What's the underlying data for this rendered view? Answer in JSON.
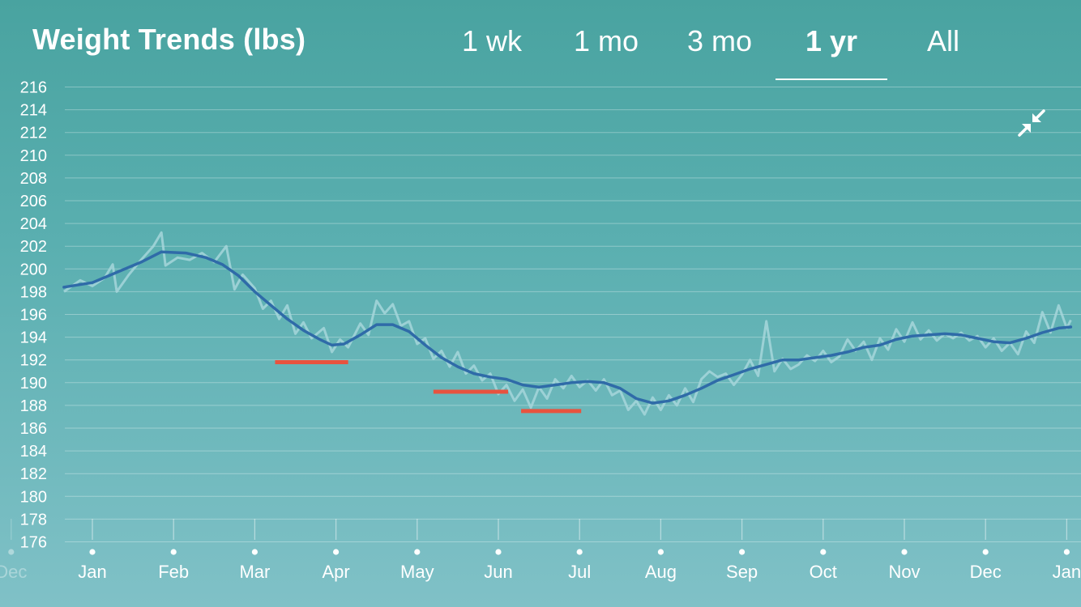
{
  "header": {
    "title": "Weight Trends (lbs)",
    "tabs": [
      {
        "label": "1 wk",
        "active": false
      },
      {
        "label": "1 mo",
        "active": false
      },
      {
        "label": "3 mo",
        "active": false
      },
      {
        "label": "1 yr",
        "active": true
      },
      {
        "label": "All",
        "active": false
      }
    ],
    "collapse_icon": "collapse-arrows-icon"
  },
  "colors": {
    "trend_line": "#2f6ba8",
    "raw_line": "#a6d6da",
    "goal_marker": "#e8533f",
    "grid": "#ffffff"
  },
  "chart_data": {
    "type": "line",
    "title": "Weight Trends (lbs)",
    "ylabel": "",
    "xlabel": "",
    "ylim": [
      176,
      216
    ],
    "y_ticks": [
      176,
      178,
      180,
      182,
      184,
      186,
      188,
      190,
      192,
      194,
      196,
      198,
      200,
      202,
      204,
      206,
      208,
      210,
      212,
      214,
      216
    ],
    "x_tick_labels": [
      "Jan",
      "Feb",
      "Mar",
      "Apr",
      "May",
      "Jun",
      "Jul",
      "Aug",
      "Sep",
      "Oct",
      "Nov",
      "Dec",
      "Jan"
    ],
    "x_edge_label": "Dec",
    "x_unit": "month index (0 = Jan, 12 = next Jan)",
    "xlim": [
      -0.35,
      12.05
    ],
    "grid": true,
    "series": [
      {
        "role": "trend",
        "points": [
          [
            -0.35,
            198.4
          ],
          [
            0.0,
            198.8
          ],
          [
            0.3,
            199.7
          ],
          [
            0.6,
            200.6
          ],
          [
            0.85,
            201.5
          ],
          [
            1.15,
            201.4
          ],
          [
            1.4,
            201.0
          ],
          [
            1.6,
            200.4
          ],
          [
            1.8,
            199.4
          ],
          [
            2.0,
            198.0
          ],
          [
            2.2,
            196.8
          ],
          [
            2.4,
            195.6
          ],
          [
            2.6,
            194.6
          ],
          [
            2.8,
            193.8
          ],
          [
            2.95,
            193.3
          ],
          [
            3.1,
            193.4
          ],
          [
            3.3,
            194.2
          ],
          [
            3.5,
            195.1
          ],
          [
            3.7,
            195.1
          ],
          [
            3.9,
            194.5
          ],
          [
            4.1,
            193.3
          ],
          [
            4.3,
            192.2
          ],
          [
            4.5,
            191.4
          ],
          [
            4.7,
            190.8
          ],
          [
            4.9,
            190.5
          ],
          [
            5.1,
            190.3
          ],
          [
            5.3,
            189.8
          ],
          [
            5.5,
            189.6
          ],
          [
            5.7,
            189.8
          ],
          [
            5.9,
            190.0
          ],
          [
            6.1,
            190.1
          ],
          [
            6.3,
            190.0
          ],
          [
            6.5,
            189.5
          ],
          [
            6.7,
            188.6
          ],
          [
            6.9,
            188.2
          ],
          [
            7.1,
            188.4
          ],
          [
            7.3,
            188.9
          ],
          [
            7.5,
            189.5
          ],
          [
            7.7,
            190.2
          ],
          [
            7.9,
            190.7
          ],
          [
            8.1,
            191.2
          ],
          [
            8.3,
            191.6
          ],
          [
            8.5,
            192.0
          ],
          [
            8.7,
            192.0
          ],
          [
            8.9,
            192.2
          ],
          [
            9.1,
            192.4
          ],
          [
            9.3,
            192.7
          ],
          [
            9.5,
            193.1
          ],
          [
            9.7,
            193.3
          ],
          [
            9.9,
            193.8
          ],
          [
            10.1,
            194.1
          ],
          [
            10.3,
            194.2
          ],
          [
            10.5,
            194.3
          ],
          [
            10.7,
            194.2
          ],
          [
            10.9,
            193.9
          ],
          [
            11.1,
            193.6
          ],
          [
            11.3,
            193.5
          ],
          [
            11.5,
            193.9
          ],
          [
            11.7,
            194.4
          ],
          [
            11.9,
            194.8
          ],
          [
            12.05,
            194.9
          ]
        ]
      },
      {
        "role": "raw",
        "points": [
          [
            -0.35,
            198.0
          ],
          [
            -0.15,
            199.0
          ],
          [
            0.0,
            198.5
          ],
          [
            0.15,
            199.2
          ],
          [
            0.25,
            200.4
          ],
          [
            0.3,
            198.0
          ],
          [
            0.45,
            199.5
          ],
          [
            0.6,
            200.8
          ],
          [
            0.75,
            202.0
          ],
          [
            0.85,
            203.2
          ],
          [
            0.9,
            200.3
          ],
          [
            1.05,
            201.0
          ],
          [
            1.2,
            200.8
          ],
          [
            1.35,
            201.4
          ],
          [
            1.5,
            200.6
          ],
          [
            1.65,
            202.0
          ],
          [
            1.75,
            198.2
          ],
          [
            1.85,
            199.5
          ],
          [
            2.0,
            198.3
          ],
          [
            2.1,
            196.5
          ],
          [
            2.2,
            197.2
          ],
          [
            2.3,
            195.6
          ],
          [
            2.4,
            196.8
          ],
          [
            2.5,
            194.3
          ],
          [
            2.6,
            195.3
          ],
          [
            2.7,
            193.9
          ],
          [
            2.85,
            194.8
          ],
          [
            2.95,
            192.7
          ],
          [
            3.05,
            193.8
          ],
          [
            3.15,
            193.1
          ],
          [
            3.3,
            195.2
          ],
          [
            3.4,
            194.2
          ],
          [
            3.5,
            197.2
          ],
          [
            3.6,
            196.1
          ],
          [
            3.7,
            196.9
          ],
          [
            3.8,
            195.0
          ],
          [
            3.9,
            195.4
          ],
          [
            4.0,
            193.4
          ],
          [
            4.1,
            193.9
          ],
          [
            4.2,
            192.1
          ],
          [
            4.3,
            192.8
          ],
          [
            4.4,
            191.4
          ],
          [
            4.5,
            192.7
          ],
          [
            4.6,
            190.8
          ],
          [
            4.7,
            191.5
          ],
          [
            4.8,
            190.2
          ],
          [
            4.9,
            190.8
          ],
          [
            5.0,
            189.0
          ],
          [
            5.1,
            189.8
          ],
          [
            5.2,
            188.4
          ],
          [
            5.3,
            189.4
          ],
          [
            5.4,
            187.8
          ],
          [
            5.5,
            189.6
          ],
          [
            5.6,
            188.6
          ],
          [
            5.7,
            190.3
          ],
          [
            5.8,
            189.5
          ],
          [
            5.9,
            190.6
          ],
          [
            6.0,
            189.6
          ],
          [
            6.1,
            190.2
          ],
          [
            6.2,
            189.3
          ],
          [
            6.3,
            190.3
          ],
          [
            6.4,
            188.9
          ],
          [
            6.5,
            189.3
          ],
          [
            6.6,
            187.6
          ],
          [
            6.7,
            188.4
          ],
          [
            6.8,
            187.2
          ],
          [
            6.9,
            188.7
          ],
          [
            7.0,
            187.6
          ],
          [
            7.1,
            188.9
          ],
          [
            7.2,
            188.0
          ],
          [
            7.3,
            189.5
          ],
          [
            7.4,
            188.3
          ],
          [
            7.5,
            190.3
          ],
          [
            7.6,
            191.0
          ],
          [
            7.7,
            190.5
          ],
          [
            7.8,
            190.8
          ],
          [
            7.9,
            189.8
          ],
          [
            8.0,
            190.7
          ],
          [
            8.1,
            192.0
          ],
          [
            8.2,
            190.6
          ],
          [
            8.3,
            195.4
          ],
          [
            8.4,
            191.0
          ],
          [
            8.5,
            192.1
          ],
          [
            8.6,
            191.2
          ],
          [
            8.7,
            191.6
          ],
          [
            8.8,
            192.4
          ],
          [
            8.9,
            191.9
          ],
          [
            9.0,
            192.8
          ],
          [
            9.1,
            191.8
          ],
          [
            9.2,
            192.3
          ],
          [
            9.3,
            193.8
          ],
          [
            9.4,
            192.8
          ],
          [
            9.5,
            193.6
          ],
          [
            9.6,
            192.0
          ],
          [
            9.7,
            193.9
          ],
          [
            9.8,
            192.9
          ],
          [
            9.9,
            194.7
          ],
          [
            10.0,
            193.6
          ],
          [
            10.1,
            195.3
          ],
          [
            10.2,
            193.8
          ],
          [
            10.3,
            194.6
          ],
          [
            10.4,
            193.7
          ],
          [
            10.5,
            194.3
          ],
          [
            10.6,
            193.9
          ],
          [
            10.7,
            194.4
          ],
          [
            10.8,
            193.7
          ],
          [
            10.9,
            194.1
          ],
          [
            11.0,
            193.1
          ],
          [
            11.1,
            193.9
          ],
          [
            11.2,
            192.8
          ],
          [
            11.3,
            193.5
          ],
          [
            11.4,
            192.5
          ],
          [
            11.5,
            194.5
          ],
          [
            11.6,
            193.5
          ],
          [
            11.7,
            196.2
          ],
          [
            11.8,
            194.4
          ],
          [
            11.9,
            196.8
          ],
          [
            12.0,
            194.8
          ],
          [
            12.05,
            195.5
          ]
        ]
      }
    ],
    "goal_markers": [
      {
        "x_start": 2.25,
        "x_end": 3.15,
        "y": 191.8
      },
      {
        "x_start": 4.2,
        "x_end": 5.12,
        "y": 189.2
      },
      {
        "x_start": 5.28,
        "x_end": 6.02,
        "y": 187.5
      }
    ]
  }
}
